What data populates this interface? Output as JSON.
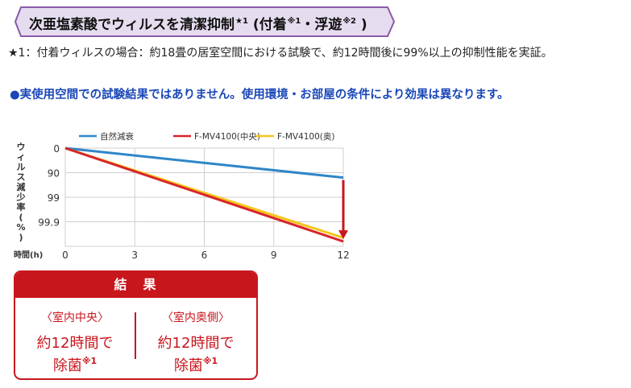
{
  "banner": {
    "title": "次亜塩素酸でウィルスを清潔抑制",
    "mark1": "★1",
    "paren_open": " (付着",
    "mark2": "※1",
    "middle": "・浮遊",
    "mark3": "※2",
    "paren_close": " )"
  },
  "note": "★1：付着ウィルスの場合：約18畳の居室空間における試験で、約12時間後に99%以上の抑制性能を実証。",
  "warning": "●実使用空間での試験結果ではありません。使用環境・お部屋の条件により効果は異なります。",
  "colors": {
    "natural": "#2e86c8",
    "center": "#d8242a",
    "back": "#f5c518",
    "accent": "#c8161d"
  },
  "chart_data": {
    "type": "line",
    "ylabel": "ウィルス減少率(%)",
    "xlabel": "時間(h)",
    "x_ticks": [
      "0",
      "3",
      "6",
      "9",
      "12"
    ],
    "y_ticks": [
      "0",
      "90",
      "99",
      "99.9"
    ],
    "xlim": [
      0,
      12
    ],
    "ylim_log_reduction": [
      0,
      4
    ],
    "y_scale": "log reduction",
    "grid": true,
    "legend_position": "top",
    "series": [
      {
        "name": "自然減衰",
        "x": [
          0,
          12
        ],
        "y": [
          0,
          1.2
        ]
      },
      {
        "name": "F-MV4100(中央)",
        "x": [
          0,
          12
        ],
        "y": [
          0,
          3.8
        ]
      },
      {
        "name": "F-MV4100(奥)",
        "x": [
          0,
          12
        ],
        "y": [
          0,
          3.65
        ]
      }
    ],
    "annotation": "down-arrow-at-12h"
  },
  "result": {
    "heading": "結　果",
    "left": {
      "sub": "〈室内中央〉",
      "line1": "約12時間で",
      "line2": "除菌",
      "mark": "※1"
    },
    "right": {
      "sub": "〈室内奥側〉",
      "line1": "約12時間で",
      "line2": "除菌",
      "mark": "※1"
    }
  }
}
